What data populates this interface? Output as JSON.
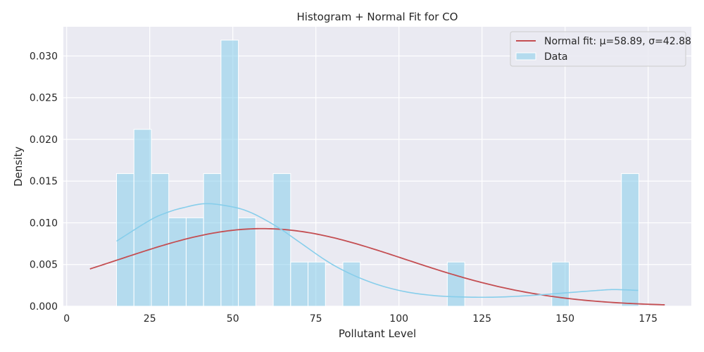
{
  "chart_data": {
    "type": "bar",
    "title": "Histogram + Normal Fit for CO",
    "xlabel": "Pollutant Level",
    "ylabel": "Density",
    "xlim": [
      -1,
      188
    ],
    "ylim": [
      0,
      0.0335
    ],
    "xticks": [
      0,
      25,
      50,
      75,
      100,
      125,
      150,
      175
    ],
    "xtick_labels": [
      "0",
      "25",
      "50",
      "75",
      "100",
      "125",
      "150",
      "175"
    ],
    "yticks": [
      0,
      0.005,
      0.01,
      0.015,
      0.02,
      0.025,
      0.03
    ],
    "ytick_labels": [
      "0.000",
      "0.005",
      "0.010",
      "0.015",
      "0.020",
      "0.025",
      "0.030"
    ],
    "grid": true,
    "legend_position": "top-right",
    "bin_width": 5.24,
    "bins": [
      {
        "start": 15.0,
        "density": 0.0159
      },
      {
        "start": 20.24,
        "density": 0.0212
      },
      {
        "start": 25.48,
        "density": 0.0159
      },
      {
        "start": 30.72,
        "density": 0.0106
      },
      {
        "start": 35.96,
        "density": 0.0106
      },
      {
        "start": 41.2,
        "density": 0.0159
      },
      {
        "start": 46.44,
        "density": 0.0319
      },
      {
        "start": 51.68,
        "density": 0.0106
      },
      {
        "start": 56.92,
        "density": 0.0
      },
      {
        "start": 62.16,
        "density": 0.0159
      },
      {
        "start": 67.4,
        "density": 0.0053
      },
      {
        "start": 72.64,
        "density": 0.0053
      },
      {
        "start": 77.88,
        "density": 0.0
      },
      {
        "start": 83.12,
        "density": 0.0053
      },
      {
        "start": 88.36,
        "density": 0.0
      },
      {
        "start": 93.6,
        "density": 0.0
      },
      {
        "start": 98.84,
        "density": 0.0
      },
      {
        "start": 104.08,
        "density": 0.0
      },
      {
        "start": 109.32,
        "density": 0.0
      },
      {
        "start": 114.56,
        "density": 0.0053
      },
      {
        "start": 119.8,
        "density": 0.0
      },
      {
        "start": 125.04,
        "density": 0.0
      },
      {
        "start": 130.28,
        "density": 0.0
      },
      {
        "start": 135.52,
        "density": 0.0
      },
      {
        "start": 140.76,
        "density": 0.0
      },
      {
        "start": 146.0,
        "density": 0.0053
      },
      {
        "start": 151.24,
        "density": 0.0
      },
      {
        "start": 156.48,
        "density": 0.0
      },
      {
        "start": 161.72,
        "density": 0.0
      },
      {
        "start": 166.96,
        "density": 0.0159
      }
    ],
    "series": [
      {
        "name": "Normal fit: μ=58.89, σ=42.88",
        "kind": "normal_pdf",
        "mu": 58.89,
        "sigma": 42.88,
        "x_range": [
          7,
          180
        ],
        "color": "#c44e52"
      },
      {
        "name": "",
        "kind": "kde",
        "color": "#87ceeb",
        "x": [
          15,
          25,
          30,
          35,
          42,
          50,
          55,
          60,
          65,
          70,
          80,
          90,
          100,
          110,
          120,
          130,
          140,
          150,
          160,
          165,
          172
        ],
        "y": [
          0.0078,
          0.0103,
          0.0112,
          0.0118,
          0.0123,
          0.0119,
          0.0113,
          0.0103,
          0.0091,
          0.0077,
          0.005,
          0.0031,
          0.0019,
          0.0013,
          0.0011,
          0.0011,
          0.0013,
          0.0016,
          0.0019,
          0.002,
          0.0019
        ]
      }
    ],
    "legend": [
      {
        "label": "Normal fit: μ=58.89, σ=42.88",
        "kind": "line",
        "color": "#c44e52"
      },
      {
        "label": "Data",
        "kind": "patch",
        "color": "#87ceeb"
      }
    ],
    "colors": {
      "plot_bg": "#eaeaf2",
      "grid": "#ffffff",
      "bar_fill": "#87ceeb",
      "bar_edge": "#ffffff"
    }
  }
}
